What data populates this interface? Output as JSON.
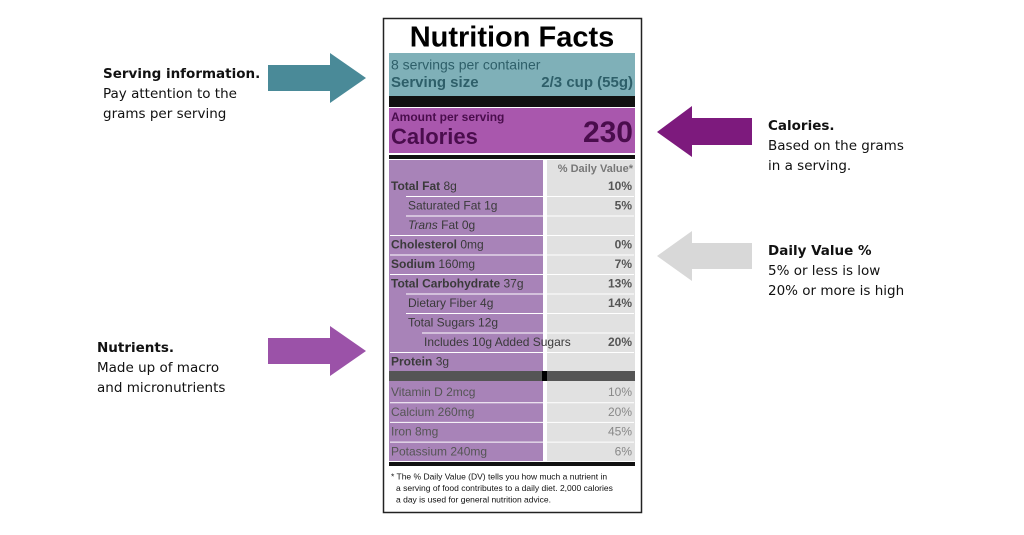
{
  "label": {
    "title": "Nutrition Facts",
    "servings": "8 servings per container",
    "serving_size_label": "Serving size",
    "serving_size_value": "2/3 cup (55g)",
    "amount_per_serving": "Amount per serving",
    "calories_label": "Calories",
    "calories_value": "230",
    "dv_header": "% Daily Value*",
    "nutrients": [
      {
        "name": "Total Fat",
        "amount": "8g",
        "dv": "10%",
        "style": "bold"
      },
      {
        "name": "Saturated Fat",
        "amount": "1g",
        "dv": "5%",
        "style": "indent"
      },
      {
        "name_italic": "Trans",
        "name": "Fat",
        "amount": "0g",
        "style": "indent"
      },
      {
        "name": "Cholesterol",
        "amount": "0mg",
        "dv": "0%",
        "style": "bold"
      },
      {
        "name": "Sodium",
        "amount": "160mg",
        "dv": "7%",
        "style": "bold"
      },
      {
        "name": "Total Carbohydrate",
        "amount": "37g",
        "dv": "13%",
        "style": "bold"
      },
      {
        "name": "Dietary Fiber",
        "amount": "4g",
        "dv": "14%",
        "style": "indent"
      },
      {
        "name": "Total Sugars",
        "amount": "12g",
        "style": "indent"
      },
      {
        "name": "Includes 10g Added Sugars",
        "dv": "20%",
        "style": "indent2"
      },
      {
        "name": "Protein",
        "amount": "3g",
        "style": "bold"
      }
    ],
    "vitamins": [
      {
        "name": "Vitamin D 2mcg",
        "dv": "10%"
      },
      {
        "name": "Calcium 260mg",
        "dv": "20%"
      },
      {
        "name": "Iron 8mg",
        "dv": "45%"
      },
      {
        "name": "Potassium 240mg",
        "dv": "6%"
      }
    ],
    "footnote": [
      "* The % Daily Value (DV) tells you how much a nutrient in",
      "a serving of food contributes to a daily diet. 2,000 calories",
      "a day is used for general nutrition advice."
    ]
  },
  "annotations": {
    "serving": {
      "title": "Serving information.",
      "lines": [
        "Pay attention to the",
        "grams per serving"
      ]
    },
    "calories": {
      "title": "Calories.",
      "lines": [
        "Based on the grams",
        "in a serving."
      ]
    },
    "daily_value": {
      "title": "Daily Value %",
      "lines": [
        "5% or less is low",
        "20% or more is high"
      ]
    },
    "nutrients": {
      "title": "Nutrients.",
      "lines": [
        "Made up of macro",
        "and micronutrients"
      ]
    }
  }
}
